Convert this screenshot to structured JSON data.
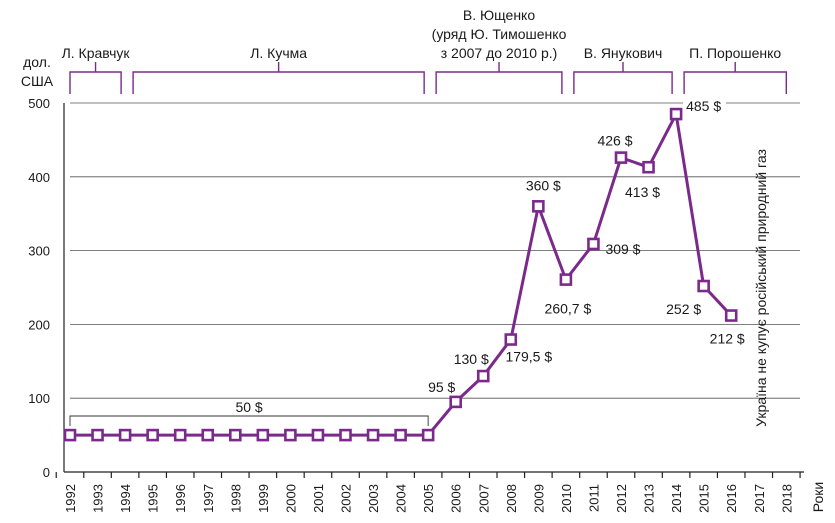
{
  "chart_data": {
    "type": "line",
    "ylabel_line1": "дол.",
    "ylabel_line2": "США",
    "xlabel": "Роки",
    "ylim": [
      0,
      500
    ],
    "yticks": [
      0,
      100,
      200,
      300,
      400,
      500
    ],
    "categories": [
      "1992",
      "1993",
      "1994",
      "1995",
      "1996",
      "1997",
      "1998",
      "1999",
      "2000",
      "2001",
      "2002",
      "2003",
      "2004",
      "2005",
      "2006",
      "2007",
      "2008",
      "2009",
      "2010",
      "2011",
      "2012",
      "2013",
      "2014",
      "2015",
      "2016",
      "2017",
      "2018"
    ],
    "series": [
      {
        "values": [
          50,
          50,
          50,
          50,
          50,
          50,
          50,
          50,
          50,
          50,
          50,
          50,
          50,
          50,
          95,
          130,
          179.5,
          360,
          260.7,
          309,
          426,
          413,
          485,
          252,
          212,
          null,
          null
        ]
      }
    ],
    "data_labels": [
      {
        "year": "2006",
        "text": "95 $"
      },
      {
        "year": "2007",
        "text": "130 $"
      },
      {
        "year": "2008",
        "text": "179,5 $"
      },
      {
        "year": "2009",
        "text": "360 $"
      },
      {
        "year": "2010",
        "text": "260,7 $"
      },
      {
        "year": "2011",
        "text": "309 $"
      },
      {
        "year": "2012",
        "text": "426 $"
      },
      {
        "year": "2013",
        "text": "413 $"
      },
      {
        "year": "2014",
        "text": "485 $"
      },
      {
        "year": "2015",
        "text": "252 $"
      },
      {
        "year": "2016",
        "text": "212 $"
      }
    ],
    "range_annotation": {
      "text": "50 $",
      "from": "1992",
      "to": "2005"
    },
    "vertical_note": "Україна не купує російський природний газ",
    "presidents": [
      {
        "lines": [
          "Л. Кравчук"
        ],
        "from": "1992",
        "to": "1994"
      },
      {
        "lines": [
          "Л. Кучма"
        ],
        "from": "1994",
        "to": "2005"
      },
      {
        "lines": [
          "В. Ющенко",
          "(уряд Ю. Тимошенко",
          "з 2007 до 2010 р.)"
        ],
        "from": "2005",
        "to": "2010"
      },
      {
        "lines": [
          "В. Янукович"
        ],
        "from": "2010",
        "to": "2014"
      },
      {
        "lines": [
          "П. Порошенко"
        ],
        "from": "2014",
        "to": "2018"
      }
    ],
    "colors": {
      "series": "#7b2a8c",
      "axis": "#222222",
      "grid": "#555555"
    }
  }
}
